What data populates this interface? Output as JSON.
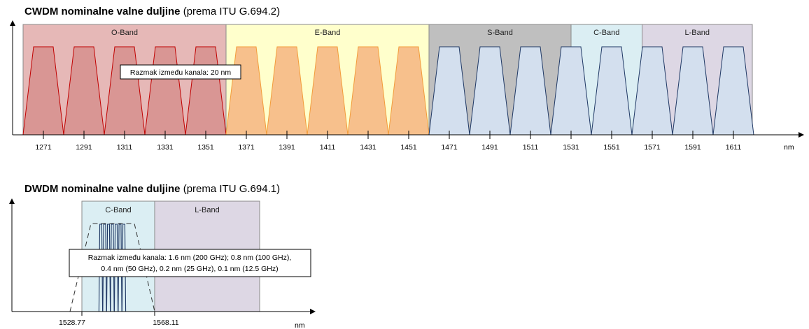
{
  "cwdm": {
    "title_bold": "CWDM nominalne valne duljine",
    "title_normal": " (prema ITU G.694.2)",
    "unit": "nm",
    "spacing_label": "Razmak između kanala: 20 nm",
    "bands": [
      {
        "name": "O-Band",
        "fill": "#e6b8b7",
        "stroke": "#c0504d"
      },
      {
        "name": "E-Band",
        "fill": "#ffffcc",
        "stroke": "#c9c26a"
      },
      {
        "name": "S-Band",
        "fill": "#bfbfbf",
        "stroke": "#7f7f7f"
      },
      {
        "name": "C-Band",
        "fill": "#dbeef3",
        "stroke": "#7fa6b8"
      },
      {
        "name": "L-Band",
        "fill": "#ddd7e4",
        "stroke": "#8e82a3"
      }
    ],
    "channels": [
      1271,
      1291,
      1311,
      1331,
      1351,
      1371,
      1391,
      1411,
      1431,
      1451,
      1471,
      1491,
      1511,
      1531,
      1551,
      1571,
      1591,
      1611
    ],
    "channel_groups": [
      {
        "fill": "#d99694",
        "stroke": "#c00000",
        "count": 5
      },
      {
        "fill": "#f7c08c",
        "stroke": "#f39c3a",
        "count": 5
      },
      {
        "fill": "#d3dfee",
        "stroke": "#1f3864",
        "count": 8
      }
    ]
  },
  "dwdm": {
    "title_bold": "DWDM nominalne valne duljine",
    "title_normal": " (prema ITU G.694.1)",
    "unit": "nm",
    "bands": [
      {
        "name": "C-Band",
        "fill": "#dbeef3"
      },
      {
        "name": "L-Band",
        "fill": "#ddd7e4"
      }
    ],
    "ticks": [
      "1528.77",
      "1568.11"
    ],
    "spacing_lines": [
      "Razmak između kanala: 1.6 nm (200 GHz); 0.8 nm (100 GHz),",
      "0.4 nm (50 GHz), 0.2 nm (25 GHz), 0.1 nm (12.5 GHz)"
    ]
  }
}
